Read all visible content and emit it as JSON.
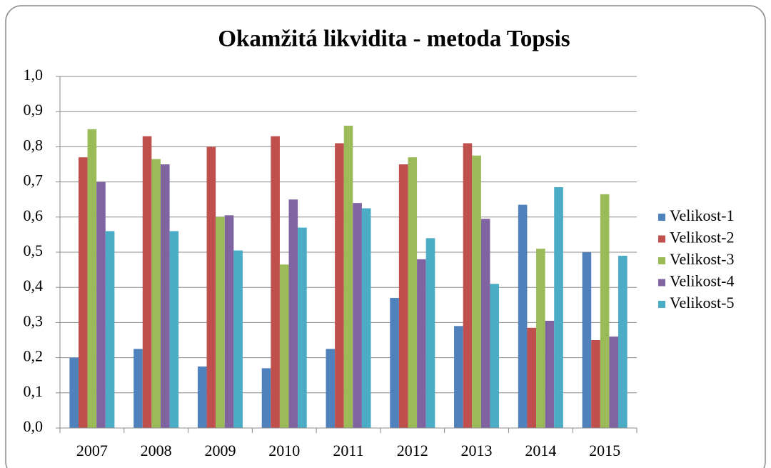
{
  "chart_data": {
    "type": "bar",
    "title": "Okamžitá likvidita - metoda Topsis",
    "categories": [
      "2007",
      "2008",
      "2009",
      "2010",
      "2011",
      "2012",
      "2013",
      "2014",
      "2015"
    ],
    "series": [
      {
        "name": "Velikost-1",
        "color": "#4f81bd",
        "values": [
          0.2,
          0.225,
          0.175,
          0.17,
          0.225,
          0.37,
          0.29,
          0.635,
          0.5
        ]
      },
      {
        "name": "Velikost-2",
        "color": "#c0504d",
        "values": [
          0.77,
          0.83,
          0.8,
          0.83,
          0.81,
          0.75,
          0.81,
          0.285,
          0.25
        ]
      },
      {
        "name": "Velikost-3",
        "color": "#9bbb59",
        "values": [
          0.85,
          0.765,
          0.6,
          0.465,
          0.86,
          0.77,
          0.775,
          0.51,
          0.665
        ]
      },
      {
        "name": "Velikost-4",
        "color": "#8064a2",
        "values": [
          0.7,
          0.75,
          0.605,
          0.65,
          0.64,
          0.48,
          0.595,
          0.305,
          0.26
        ]
      },
      {
        "name": "Velikost-5",
        "color": "#4bacc6",
        "values": [
          0.56,
          0.56,
          0.505,
          0.57,
          0.625,
          0.54,
          0.41,
          0.685,
          0.49
        ]
      }
    ],
    "ylim": [
      0,
      1.0
    ],
    "yticks": [
      {
        "value": 0,
        "label": "0,0"
      },
      {
        "value": 0.1,
        "label": "0,1"
      },
      {
        "value": 0.2,
        "label": "0,2"
      },
      {
        "value": 0.3,
        "label": "0,3"
      },
      {
        "value": 0.4,
        "label": "0,4"
      },
      {
        "value": 0.5,
        "label": "0,5"
      },
      {
        "value": 0.6,
        "label": "0,6"
      },
      {
        "value": 0.7,
        "label": "0,7"
      },
      {
        "value": 0.8,
        "label": "0,8"
      },
      {
        "value": 0.9,
        "label": "0,9"
      },
      {
        "value": 1.0,
        "label": "1,0"
      }
    ],
    "grid": true,
    "legend": "right"
  }
}
